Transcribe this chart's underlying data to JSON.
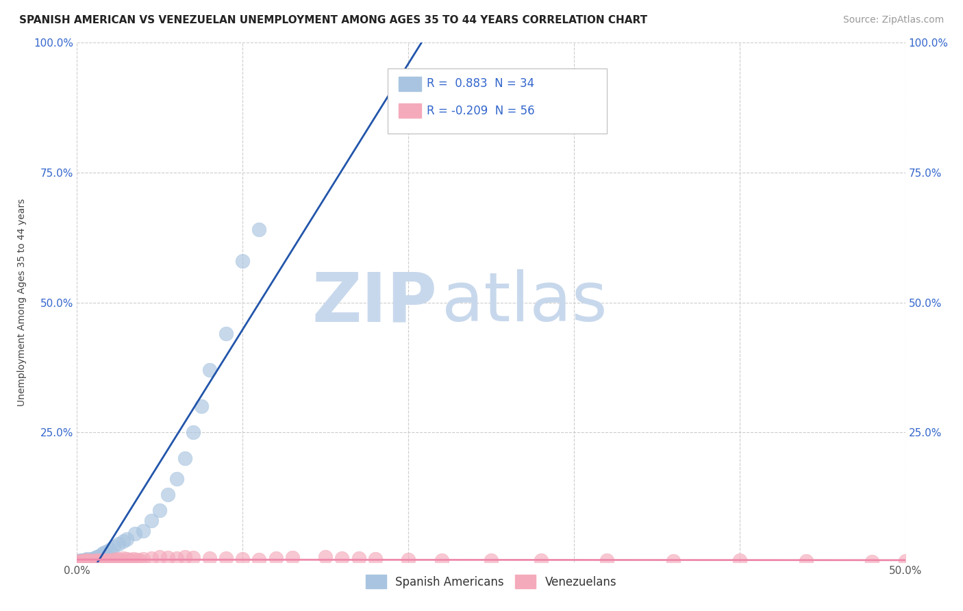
{
  "title": "SPANISH AMERICAN VS VENEZUELAN UNEMPLOYMENT AMONG AGES 35 TO 44 YEARS CORRELATION CHART",
  "source": "Source: ZipAtlas.com",
  "ylabel_label": "Unemployment Among Ages 35 to 44 years",
  "xlim": [
    0,
    0.5
  ],
  "ylim": [
    0,
    1.0
  ],
  "legend_blue_label": "R =  0.883  N = 34",
  "legend_pink_label": "R = -0.209  N = 56",
  "legend_bottom_blue": "Spanish Americans",
  "legend_bottom_pink": "Venezuelans",
  "blue_color": "#A8C4E0",
  "pink_color": "#F4AABB",
  "blue_line_color": "#2255AA",
  "pink_line_color": "#EE88AA",
  "watermark_zip": "ZIP",
  "watermark_atlas": "atlas",
  "watermark_color": "#C8D8EC",
  "blue_scatter_x": [
    0.001,
    0.002,
    0.003,
    0.004,
    0.005,
    0.006,
    0.007,
    0.008,
    0.009,
    0.01,
    0.011,
    0.012,
    0.013,
    0.015,
    0.016,
    0.018,
    0.02,
    0.022,
    0.025,
    0.028,
    0.03,
    0.035,
    0.04,
    0.045,
    0.05,
    0.055,
    0.06,
    0.065,
    0.07,
    0.075,
    0.08,
    0.09,
    0.1,
    0.11
  ],
  "blue_scatter_y": [
    0.002,
    0.003,
    0.004,
    0.003,
    0.005,
    0.006,
    0.004,
    0.005,
    0.006,
    0.007,
    0.008,
    0.01,
    0.012,
    0.015,
    0.018,
    0.02,
    0.025,
    0.03,
    0.035,
    0.04,
    0.045,
    0.055,
    0.06,
    0.08,
    0.1,
    0.13,
    0.16,
    0.2,
    0.25,
    0.3,
    0.37,
    0.44,
    0.58,
    0.64
  ],
  "pink_scatter_x": [
    0.001,
    0.002,
    0.003,
    0.004,
    0.005,
    0.006,
    0.007,
    0.008,
    0.009,
    0.01,
    0.011,
    0.012,
    0.013,
    0.014,
    0.015,
    0.016,
    0.017,
    0.018,
    0.019,
    0.02,
    0.022,
    0.024,
    0.026,
    0.028,
    0.03,
    0.032,
    0.034,
    0.036,
    0.038,
    0.04,
    0.045,
    0.05,
    0.055,
    0.06,
    0.065,
    0.07,
    0.08,
    0.09,
    0.1,
    0.11,
    0.12,
    0.13,
    0.15,
    0.16,
    0.17,
    0.18,
    0.2,
    0.22,
    0.25,
    0.28,
    0.32,
    0.36,
    0.4,
    0.44,
    0.48,
    0.5
  ],
  "pink_scatter_y": [
    0.001,
    0.002,
    0.001,
    0.002,
    0.003,
    0.002,
    0.003,
    0.002,
    0.001,
    0.002,
    0.003,
    0.002,
    0.003,
    0.002,
    0.004,
    0.003,
    0.002,
    0.003,
    0.002,
    0.004,
    0.005,
    0.006,
    0.005,
    0.007,
    0.006,
    0.005,
    0.006,
    0.005,
    0.004,
    0.006,
    0.008,
    0.01,
    0.009,
    0.008,
    0.01,
    0.009,
    0.008,
    0.007,
    0.006,
    0.005,
    0.008,
    0.009,
    0.01,
    0.008,
    0.007,
    0.006,
    0.005,
    0.004,
    0.003,
    0.004,
    0.003,
    0.002,
    0.003,
    0.002,
    0.001,
    0.002
  ],
  "title_fontsize": 11,
  "source_fontsize": 10,
  "tick_fontsize": 11,
  "legend_fontsize": 12
}
